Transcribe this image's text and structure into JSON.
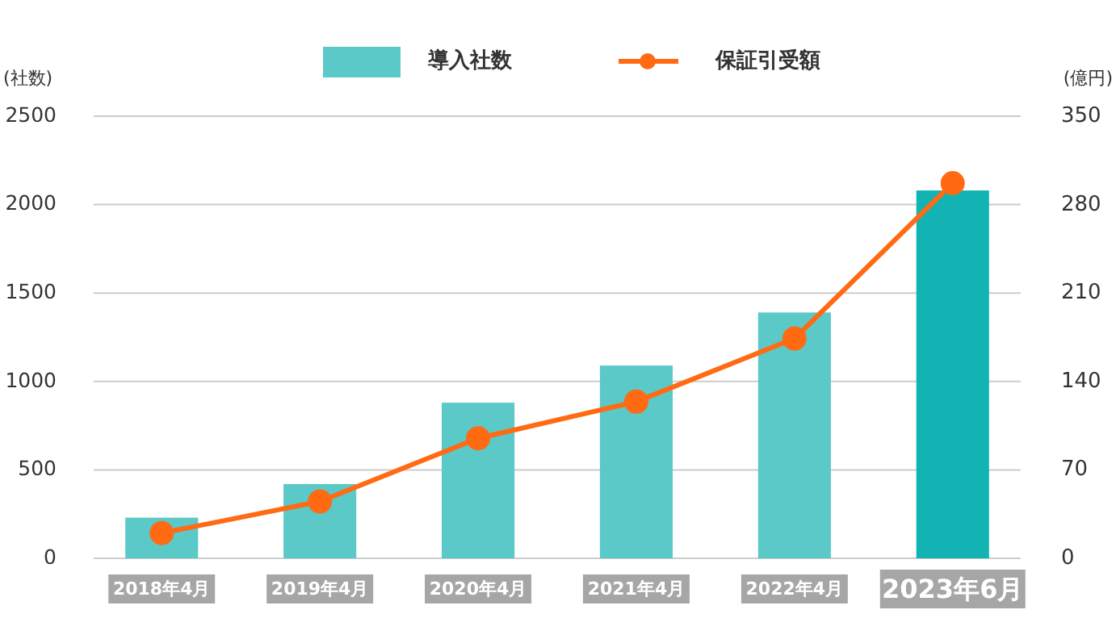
{
  "chart_data": {
    "type": "bar",
    "categories": [
      "2018年4月",
      "2019年4月",
      "2020年4月",
      "2021年4月",
      "2022年4月",
      "2023年6月"
    ],
    "ylabel": "(社数)",
    "y2label": "(億円)",
    "ylim": [
      0,
      2500
    ],
    "yticks": [
      0,
      500,
      1000,
      1500,
      2000,
      2500
    ],
    "y2lim": [
      0,
      350
    ],
    "y2ticks": [
      0,
      70,
      140,
      210,
      280,
      350
    ],
    "grid": "y",
    "legend": "top",
    "series": [
      {
        "name": "導入社数",
        "color": "#5bc9c8",
        "colors": [
          "#5bc9c8",
          "#5bc9c8",
          "#5bc9c8",
          "#5bc9c8",
          "#5bc9c8",
          "#14b3b3"
        ],
        "values": [
          230,
          420,
          880,
          1090,
          1390,
          2080
        ]
      },
      {
        "name": "保証引受額",
        "type": "line",
        "axis": "y2",
        "color": "#ff6a13",
        "marker": "circle",
        "values": [
          20,
          45,
          95,
          124,
          174,
          297
        ]
      }
    ]
  }
}
